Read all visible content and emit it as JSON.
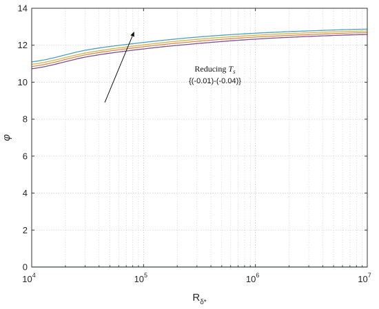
{
  "chart_data": {
    "type": "line",
    "xscale": "log",
    "xlim": [
      10000,
      10000000
    ],
    "ylim": [
      0,
      14
    ],
    "xlabel": "R",
    "xlabel_sub": "δ*",
    "ylabel": "φ",
    "x_ticks": [
      10000,
      100000,
      1000000,
      10000000
    ],
    "x_tick_labels": [
      {
        "base": "10",
        "exp": "4"
      },
      {
        "base": "10",
        "exp": "5"
      },
      {
        "base": "10",
        "exp": "6"
      },
      {
        "base": "10",
        "exp": "7"
      }
    ],
    "y_ticks": [
      0,
      2,
      4,
      6,
      8,
      10,
      12,
      14
    ],
    "y_tick_labels": [
      "0",
      "2",
      "4",
      "6",
      "8",
      "10",
      "12",
      "14"
    ],
    "grid": true,
    "legend": "none",
    "series": [
      {
        "color": "#4aa0b8",
        "x": [
          10000,
          31623,
          100000,
          316228,
          1000000,
          3162278,
          10000000
        ],
        "y": [
          11.1,
          11.75,
          12.15,
          12.45,
          12.65,
          12.78,
          12.87
        ]
      },
      {
        "color": "#d9b24a",
        "x": [
          10000,
          31623,
          100000,
          316228,
          1000000,
          3162278,
          10000000
        ],
        "y": [
          10.97,
          11.6,
          12.02,
          12.33,
          12.54,
          12.68,
          12.77
        ]
      },
      {
        "color": "#e0884a",
        "x": [
          10000,
          31623,
          100000,
          316228,
          1000000,
          3162278,
          10000000
        ],
        "y": [
          10.85,
          11.5,
          11.92,
          12.22,
          12.44,
          12.58,
          12.68
        ]
      },
      {
        "color": "#7b4f8f",
        "x": [
          10000,
          31623,
          100000,
          316228,
          1000000,
          3162278,
          10000000
        ],
        "y": [
          10.73,
          11.38,
          11.8,
          12.1,
          12.33,
          12.48,
          12.58
        ]
      },
      {
        "color": "#4aa0b8",
        "x": [
          10000,
          10000000
        ],
        "y": [
          0,
          0
        ]
      }
    ],
    "annotation": {
      "line1_prefix": "Reducing ",
      "line1_symbol": "T",
      "line1_sub": "s",
      "line2": "{(-0.01)-(-0.04)}",
      "arrow_from": [
        45000,
        8.9
      ],
      "arrow_to": [
        82000,
        12.7
      ]
    }
  }
}
